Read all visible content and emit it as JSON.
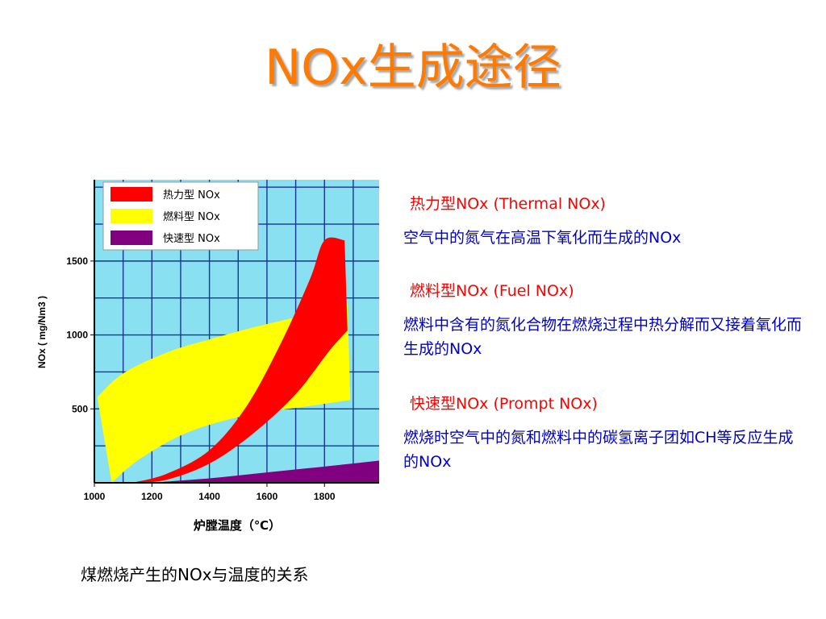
{
  "slide": {
    "title": "NOx生成途径",
    "caption": "煤燃烧产生的NOx与温度的关系"
  },
  "descriptions": [
    {
      "heading": "热力型NOx (Thermal NOx)",
      "text": "空气中的氮气在高温下氧化而生成的NOx"
    },
    {
      "heading": "燃料型NOx (Fuel NOx)",
      "text": "燃料中含有的氮化合物在燃烧过程中热分解而又接着氧化而生成的NOx"
    },
    {
      "heading": "快速型NOx  (Prompt NOx)",
      "text": "燃烧时空气中的氮和燃料中的碳氢离子团如CH等反应生成的NOx"
    }
  ],
  "chart_data": {
    "type": "area",
    "xlabel": "炉膛温度（℃）",
    "ylabel": "NOx ( mg/Nm3 )",
    "xlim": [
      1000,
      1990
    ],
    "ylim": [
      0,
      2050
    ],
    "xticks": [
      1000,
      1200,
      1400,
      1600,
      1800
    ],
    "yticks": [
      500,
      1000,
      1500
    ],
    "grid": true,
    "legend_position": "top-left",
    "colors": {
      "plot_bg": "#88e0f0",
      "grid": "#1a3399",
      "thermal": "#ff0000",
      "fuel": "#ffff00",
      "prompt": "#800080"
    },
    "series": [
      {
        "name": "热力型 NOx",
        "color": "#ff0000",
        "upper": [
          [
            1130,
            0
          ],
          [
            1250,
            60
          ],
          [
            1400,
            220
          ],
          [
            1530,
            520
          ],
          [
            1650,
            950
          ],
          [
            1750,
            1380
          ],
          [
            1800,
            1640
          ],
          [
            1870,
            1640
          ]
        ],
        "lower": [
          [
            1130,
            0
          ],
          [
            1250,
            20
          ],
          [
            1400,
            130
          ],
          [
            1550,
            330
          ],
          [
            1700,
            600
          ],
          [
            1820,
            900
          ],
          [
            1880,
            1030
          ]
        ]
      },
      {
        "name": "燃料型 NOx",
        "color": "#ffff00",
        "upper": [
          [
            1010,
            580
          ],
          [
            1100,
            740
          ],
          [
            1250,
            880
          ],
          [
            1400,
            970
          ],
          [
            1550,
            1050
          ],
          [
            1700,
            1120
          ],
          [
            1880,
            1210
          ]
        ],
        "lower": [
          [
            1060,
            0
          ],
          [
            1150,
            150
          ],
          [
            1300,
            320
          ],
          [
            1450,
            420
          ],
          [
            1600,
            480
          ],
          [
            1750,
            520
          ],
          [
            1890,
            560
          ]
        ]
      },
      {
        "name": "快速型 NOx",
        "color": "#800080",
        "upper": [
          [
            1190,
            0
          ],
          [
            1400,
            30
          ],
          [
            1600,
            70
          ],
          [
            1800,
            110
          ],
          [
            1990,
            150
          ]
        ],
        "lower": [
          [
            1190,
            0
          ],
          [
            1500,
            0
          ],
          [
            1800,
            0
          ],
          [
            1990,
            0
          ]
        ]
      }
    ]
  }
}
